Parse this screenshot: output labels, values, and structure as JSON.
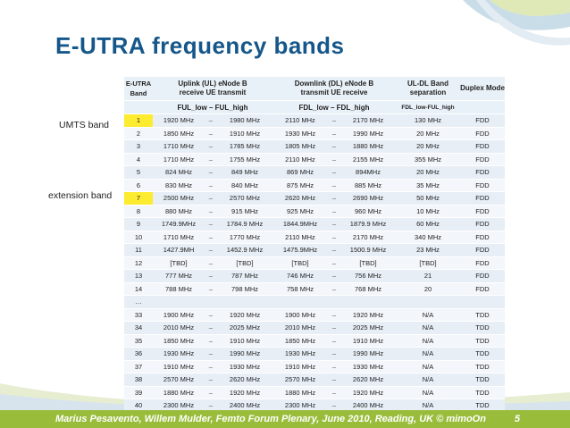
{
  "title": "E-UTRA frequency bands",
  "side_labels": {
    "umts": "UMTS band",
    "extension": "extension band"
  },
  "table": {
    "headers": {
      "band": "E-UTRA Band",
      "uplink": "Uplink (UL) eNode B receive UE transmit",
      "downlink": "Downlink (DL) eNode B transmit UE receive",
      "separation": "UL-DL Band separation",
      "duplex": "Duplex Mode",
      "ul_range": "FUL_low – FUL_high",
      "dl_range": "FDL_low – FDL_high",
      "sep_formula": "FDL_low-FUL_high"
    },
    "rows": [
      {
        "band": "1",
        "ul_low": "1920 MHz",
        "ul_high": "1980 MHz",
        "dl_low": "2110 MHz",
        "dl_high": "2170 MHz",
        "sep": "130 MHz",
        "duplex": "FDD"
      },
      {
        "band": "2",
        "ul_low": "1850 MHz",
        "ul_high": "1910 MHz",
        "dl_low": "1930 MHz",
        "dl_high": "1990 MHz",
        "sep": "20 MHz",
        "duplex": "FDD"
      },
      {
        "band": "3",
        "ul_low": "1710 MHz",
        "ul_high": "1785 MHz",
        "dl_low": "1805 MHz",
        "dl_high": "1880 MHz",
        "sep": "20 MHz",
        "duplex": "FDD"
      },
      {
        "band": "4",
        "ul_low": "1710 MHz",
        "ul_high": "1755 MHz",
        "dl_low": "2110 MHz",
        "dl_high": "2155 MHz",
        "sep": "355 MHz",
        "duplex": "FDD"
      },
      {
        "band": "5",
        "ul_low": "824 MHz",
        "ul_high": "849 MHz",
        "dl_low": "869 MHz",
        "dl_high": "894MHz",
        "sep": "20 MHz",
        "duplex": "FDD"
      },
      {
        "band": "6",
        "ul_low": "830 MHz",
        "ul_high": "840 MHz",
        "dl_low": "875 MHz",
        "dl_high": "885 MHz",
        "sep": "35 MHz",
        "duplex": "FDD"
      },
      {
        "band": "7",
        "ul_low": "2500 MHz",
        "ul_high": "2570 MHz",
        "dl_low": "2620 MHz",
        "dl_high": "2690 MHz",
        "sep": "50 MHz",
        "duplex": "FDD"
      },
      {
        "band": "8",
        "ul_low": "880 MHz",
        "ul_high": "915 MHz",
        "dl_low": "925 MHz",
        "dl_high": "960 MHz",
        "sep": "10 MHz",
        "duplex": "FDD"
      },
      {
        "band": "9",
        "ul_low": "1749.9MHz",
        "ul_high": "1784.9 MHz",
        "dl_low": "1844.9MHz",
        "dl_high": "1879.9 MHz",
        "sep": "60 MHz",
        "duplex": "FDD"
      },
      {
        "band": "10",
        "ul_low": "1710 MHz",
        "ul_high": "1770 MHz",
        "dl_low": "2110 MHz",
        "dl_high": "2170 MHz",
        "sep": "340 MHz",
        "duplex": "FDD"
      },
      {
        "band": "11",
        "ul_low": "1427.9MH",
        "ul_high": "1452.9 MHz",
        "dl_low": "1475.9MHz",
        "dl_high": "1500.9 MHz",
        "sep": "23 MHz",
        "duplex": "FDD"
      },
      {
        "band": "12",
        "ul_low": "[TBD]",
        "ul_high": "[TBD]",
        "dl_low": "[TBD]",
        "dl_high": "[TBD]",
        "sep": "[TBD]",
        "duplex": "FDD"
      },
      {
        "band": "13",
        "ul_low": "777 MHz",
        "ul_high": "787 MHz",
        "dl_low": "746 MHz",
        "dl_high": "756 MHz",
        "sep": "21",
        "duplex": "FDD"
      },
      {
        "band": "14",
        "ul_low": "788 MHz",
        "ul_high": "798 MHz",
        "dl_low": "758 MHz",
        "dl_high": "768 MHz",
        "sep": "20",
        "duplex": "FDD"
      },
      {
        "band": "…",
        "ul_low": "",
        "ul_high": "",
        "dl_low": "",
        "dl_high": "",
        "sep": "",
        "duplex": "",
        "gap": true
      },
      {
        "band": "33",
        "ul_low": "1900 MHz",
        "ul_high": "1920 MHz",
        "dl_low": "1900 MHz",
        "dl_high": "1920 MHz",
        "sep": "N/A",
        "duplex": "TDD"
      },
      {
        "band": "34",
        "ul_low": "2010 MHz",
        "ul_high": "2025 MHz",
        "dl_low": "2010 MHz",
        "dl_high": "2025 MHz",
        "sep": "N/A",
        "duplex": "TDD"
      },
      {
        "band": "35",
        "ul_low": "1850 MHz",
        "ul_high": "1910 MHz",
        "dl_low": "1850 MHz",
        "dl_high": "1910 MHz",
        "sep": "N/A",
        "duplex": "TDD"
      },
      {
        "band": "36",
        "ul_low": "1930 MHz",
        "ul_high": "1990 MHz",
        "dl_low": "1930 MHz",
        "dl_high": "1990 MHz",
        "sep": "N/A",
        "duplex": "TDD"
      },
      {
        "band": "37",
        "ul_low": "1910 MHz",
        "ul_high": "1930 MHz",
        "dl_low": "1910 MHz",
        "dl_high": "1930 MHz",
        "sep": "N/A",
        "duplex": "TDD"
      },
      {
        "band": "38",
        "ul_low": "2570 MHz",
        "ul_high": "2620 MHz",
        "dl_low": "2570 MHz",
        "dl_high": "2620 MHz",
        "sep": "N/A",
        "duplex": "TDD"
      },
      {
        "band": "39",
        "ul_low": "1880 MHz",
        "ul_high": "1920 MHz",
        "dl_low": "1880 MHz",
        "dl_high": "1920 MHz",
        "sep": "N/A",
        "duplex": "TDD"
      },
      {
        "band": "40",
        "ul_low": "2300 MHz",
        "ul_high": "2400 MHz",
        "dl_low": "2300 MHz",
        "dl_high": "2400 MHz",
        "sep": "N/A",
        "duplex": "TDD"
      }
    ],
    "dash": "–",
    "highlight_bands": [
      "1",
      "7"
    ]
  },
  "footer": {
    "text": "Marius Pesavento, Willem Mulder, Femto Forum Plenary, June 2010,  Reading, UK    © mimoOn",
    "page": "5"
  },
  "colors": {
    "title": "#15578a",
    "footer_bg": "#99bd3b",
    "highlight": "#fdeb2f",
    "header_bg": "#e9f1f8"
  }
}
